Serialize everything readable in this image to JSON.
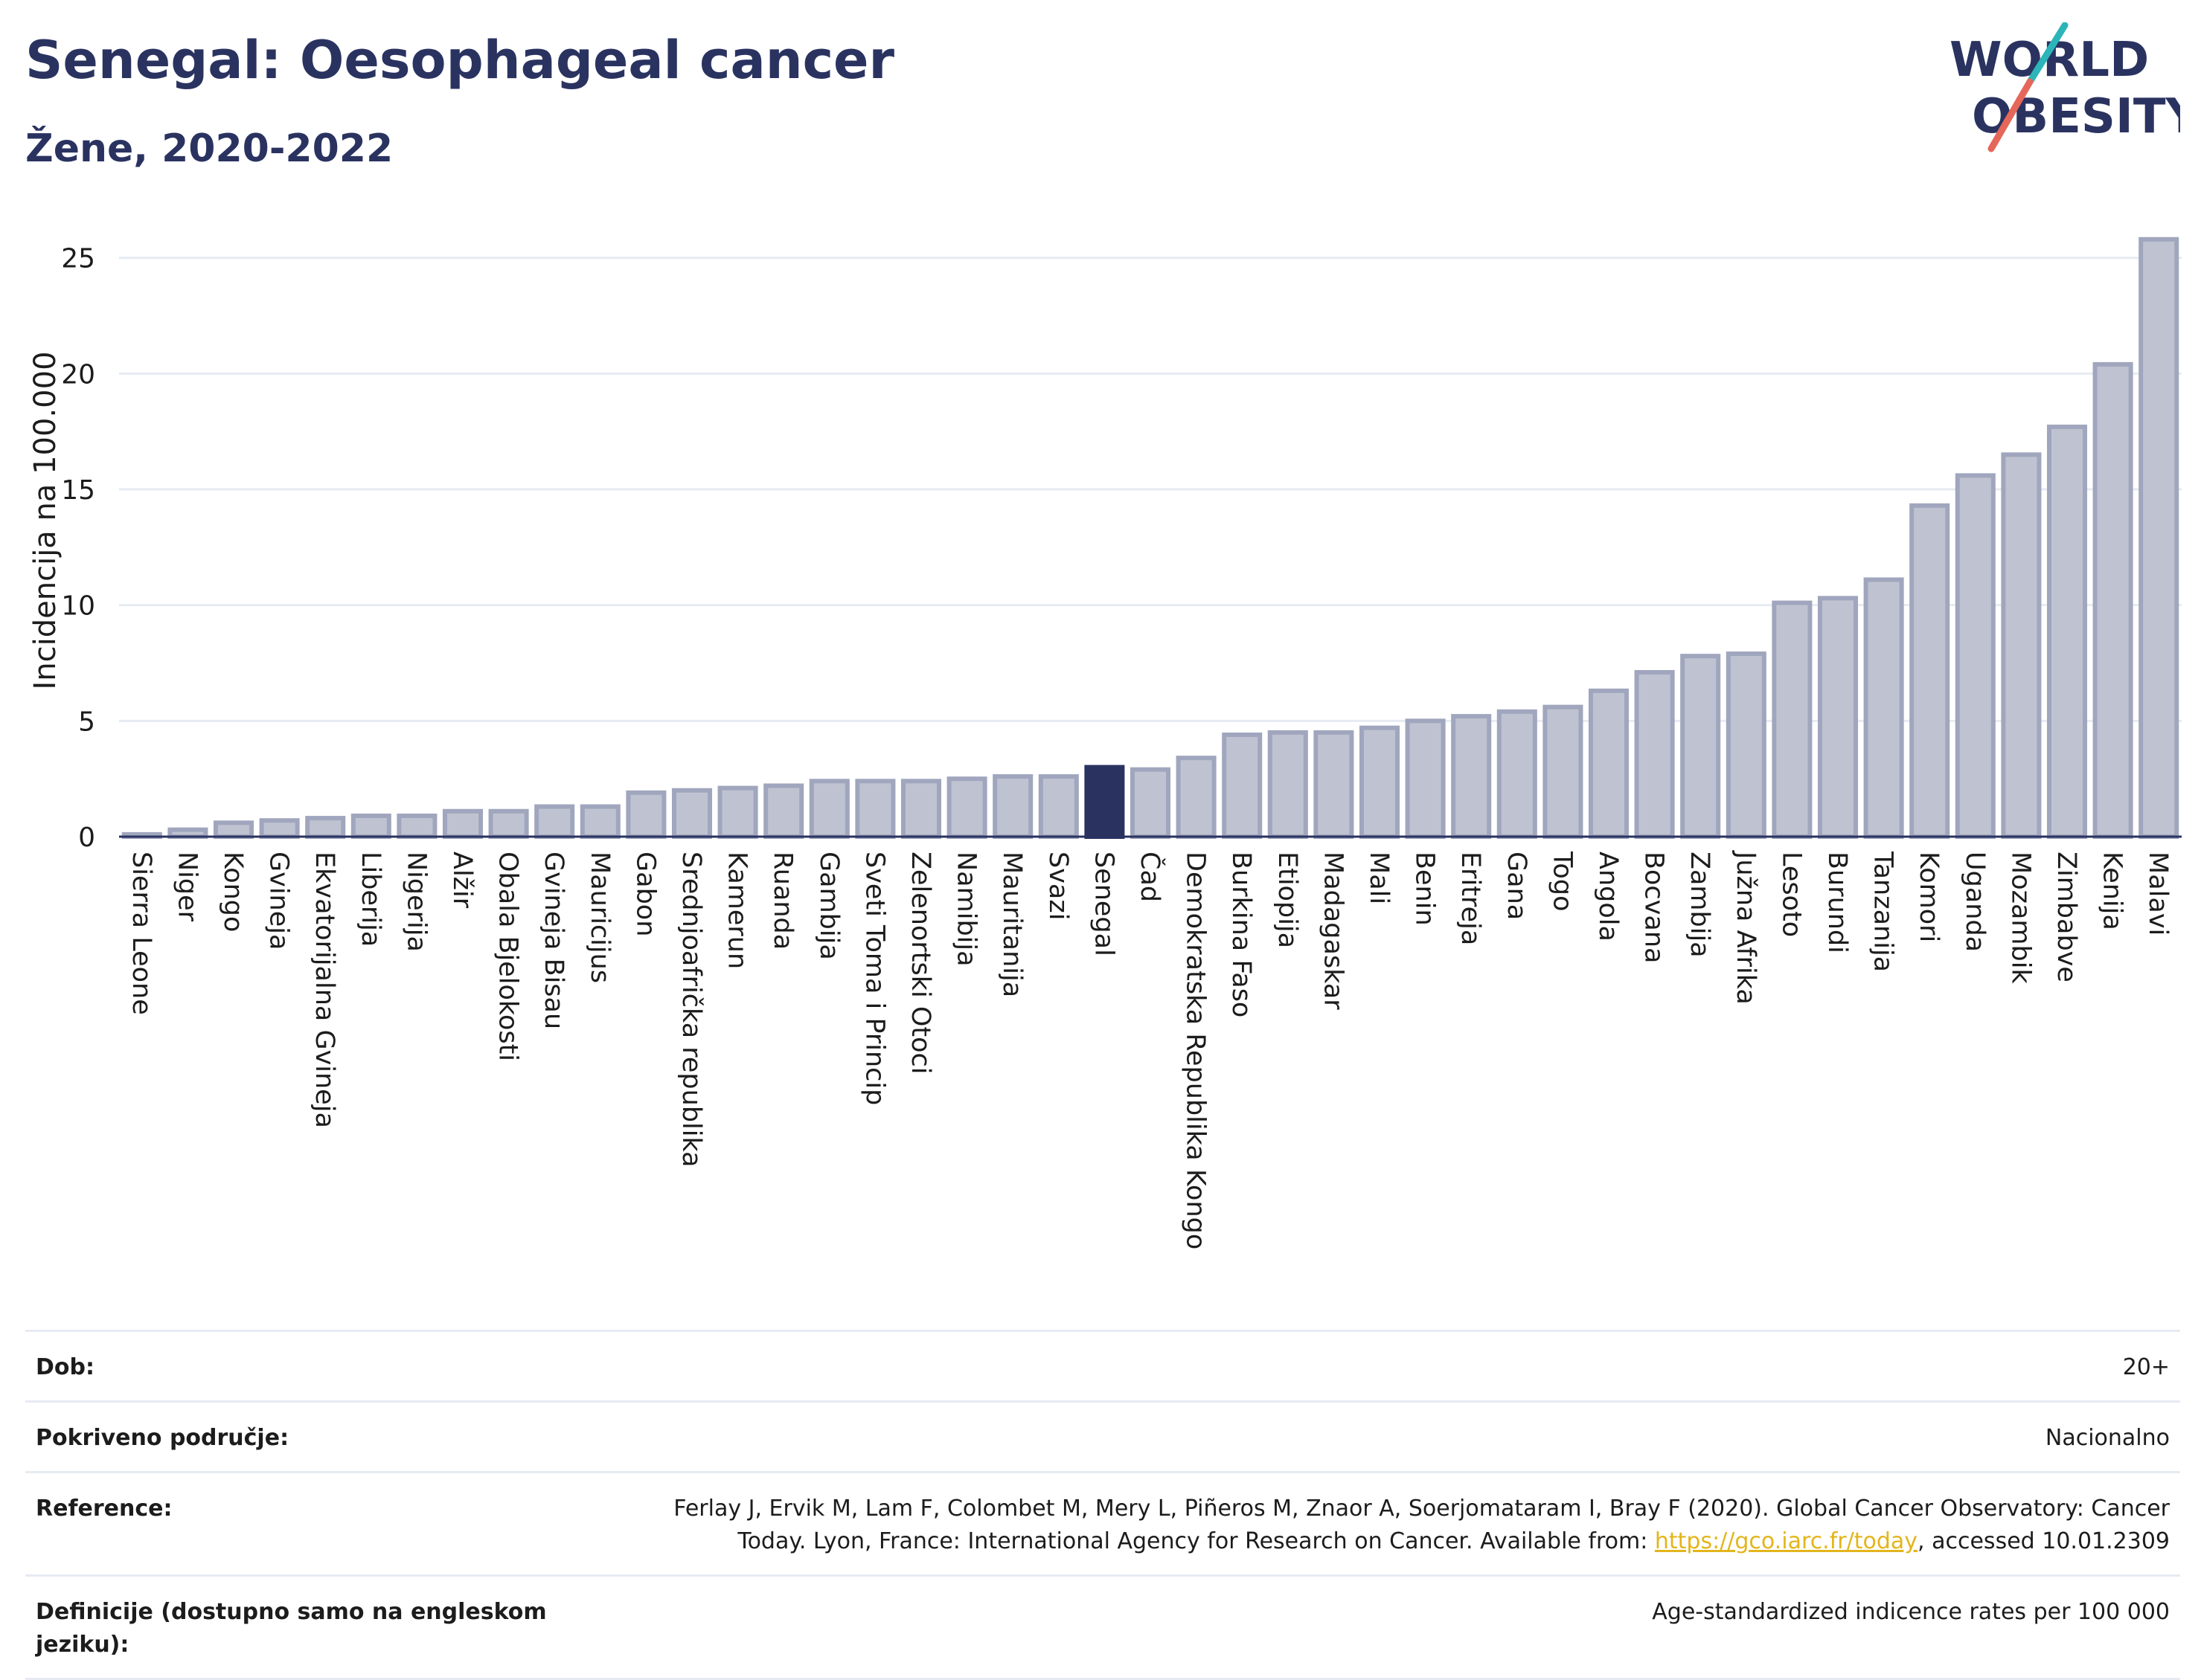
{
  "header": {
    "title": "Senegal: Oesophageal cancer",
    "subtitle": "Žene, 2020-2022"
  },
  "logo": {
    "line1": "WORLD",
    "line2": "OBESITY",
    "colors": {
      "text": "#2a3360",
      "slash_teal": "#2bb5b9",
      "slash_red": "#e5675a"
    }
  },
  "colors": {
    "bar_fill": "#bfc3d1",
    "bar_stroke": "#a0a6bd",
    "highlight_fill": "#2a3360",
    "axis": "#2a3360",
    "grid": "#e6ebf2"
  },
  "chart_data": {
    "type": "bar",
    "ylabel": "Incidencija na 100.000",
    "xlabel": "",
    "ylim": [
      0,
      26.5
    ],
    "yticks": [
      0,
      5,
      10,
      15,
      20,
      25
    ],
    "grid": true,
    "highlight": "Senegal",
    "categories": [
      "Sierra Leone",
      "Niger",
      "Kongo",
      "Gvineja",
      "Ekvatorijalna Gvineja",
      "Liberija",
      "Nigerija",
      "Alžir",
      "Obala Bjelokosti",
      "Gvineja Bisau",
      "Mauricijus",
      "Gabon",
      "Srednjoafrička republika",
      "Kamerun",
      "Ruanda",
      "Gambija",
      "Sveti Toma i Princip",
      "Zelenortski Otoci",
      "Namibija",
      "Mauritanija",
      "Svazi",
      "Senegal",
      "Čad",
      "Demokratska Republika Kongo",
      "Burkina Faso",
      "Etiopija",
      "Madagaskar",
      "Mali",
      "Benin",
      "Eritreja",
      "Gana",
      "Togo",
      "Angola",
      "Bocvana",
      "Zambija",
      "Južna Afrika",
      "Lesoto",
      "Burundi",
      "Tanzanija",
      "Komori",
      "Uganda",
      "Mozambik",
      "Zimbabve",
      "Kenija",
      "Malavi"
    ],
    "values": [
      0.1,
      0.3,
      0.6,
      0.7,
      0.8,
      0.9,
      0.9,
      1.1,
      1.1,
      1.3,
      1.3,
      1.9,
      2.0,
      2.1,
      2.2,
      2.4,
      2.4,
      2.4,
      2.5,
      2.6,
      2.6,
      3.0,
      2.9,
      3.4,
      4.4,
      4.5,
      4.5,
      4.7,
      5.0,
      5.2,
      5.4,
      5.6,
      6.3,
      7.1,
      7.8,
      7.9,
      10.1,
      10.3,
      11.1,
      14.3,
      15.6,
      16.5,
      17.7,
      20.4,
      25.8
    ]
  },
  "info": {
    "rows": [
      {
        "key": "Dob:",
        "value": "20+"
      },
      {
        "key": "Pokriveno područje:",
        "value": "Nacionalno"
      },
      {
        "key": "Reference:",
        "value": "Ferlay J, Ervik M, Lam F, Colombet M, Mery L, Piñeros M, Znaor A, Soerjomataram I, Bray F (2020). Global Cancer Observatory: Cancer Today. Lyon, France: International Agency for Research on Cancer. Available from: ",
        "link": "https://gco.iarc.fr/today",
        "suffix": ", accessed 10.01.2309"
      },
      {
        "key": "Definicije (dostupno samo na engleskom jeziku):",
        "value": "Age-standardized indicence rates per 100 000"
      }
    ]
  }
}
